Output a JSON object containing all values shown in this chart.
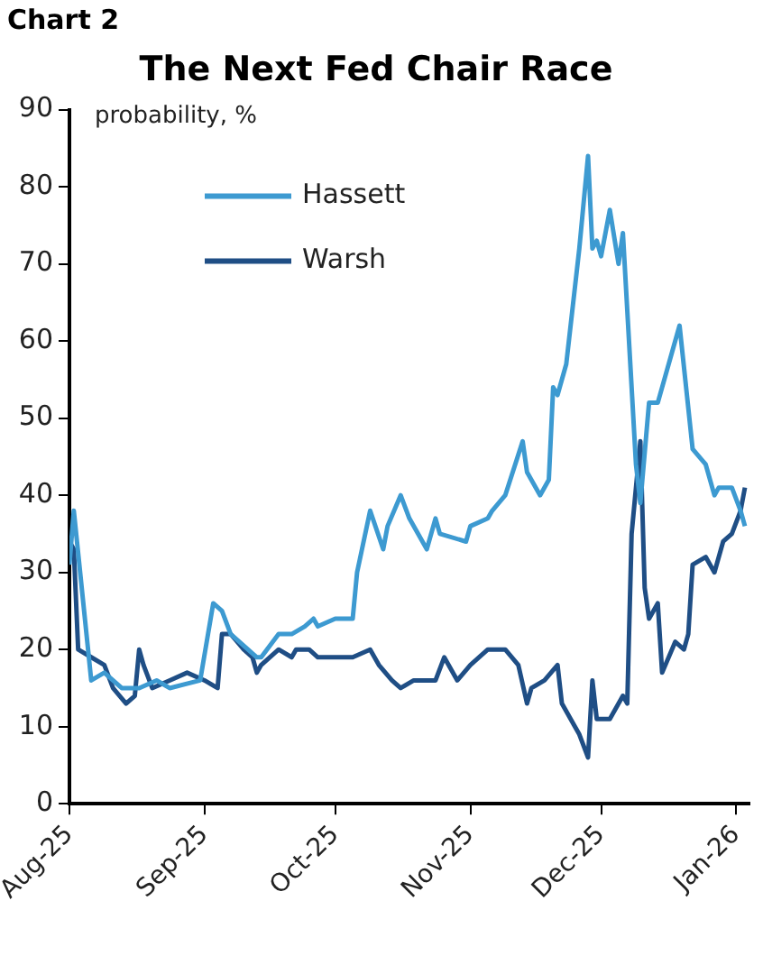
{
  "chart_data": {
    "type": "line",
    "title": "The Next Fed Chair Race",
    "ylabel": "probability, %",
    "annotations": [
      "Chart 2"
    ],
    "xlim": [
      "2025-08-01",
      "2026-01-04"
    ],
    "xticks": [
      {
        "value": "2025-08-01",
        "label": "Aug-25"
      },
      {
        "value": "2025-09-01",
        "label": "Sep-25"
      },
      {
        "value": "2025-10-01",
        "label": "Oct-25"
      },
      {
        "value": "2025-11-01",
        "label": "Nov-25"
      },
      {
        "value": "2025-12-01",
        "label": "Dec-25"
      },
      {
        "value": "2026-01-01",
        "label": "Jan-26"
      }
    ],
    "ylim": [
      0,
      90
    ],
    "yticks": [
      0,
      10,
      20,
      30,
      40,
      50,
      60,
      70,
      80,
      90
    ],
    "grid": false,
    "legend": "top left",
    "line_style": "solid",
    "marker": "none",
    "series": [
      {
        "name": "Hassett",
        "color": "#3d9ad1",
        "x": [
          "2025-08-01",
          "2025-08-02",
          "2025-08-04",
          "2025-08-06",
          "2025-08-09",
          "2025-08-13",
          "2025-08-17",
          "2025-08-21",
          "2025-08-24",
          "2025-08-31",
          "2025-09-03",
          "2025-09-05",
          "2025-09-07",
          "2025-09-13",
          "2025-09-14",
          "2025-09-18",
          "2025-09-21",
          "2025-09-24",
          "2025-09-26",
          "2025-09-27",
          "2025-10-01",
          "2025-10-05",
          "2025-10-06",
          "2025-10-09",
          "2025-10-12",
          "2025-10-13",
          "2025-10-16",
          "2025-10-18",
          "2025-10-22",
          "2025-10-24",
          "2025-10-25",
          "2025-10-31",
          "2025-11-01",
          "2025-11-05",
          "2025-11-06",
          "2025-11-09",
          "2025-11-13",
          "2025-11-14",
          "2025-11-17",
          "2025-11-19",
          "2025-11-20",
          "2025-11-21",
          "2025-11-23",
          "2025-11-26",
          "2025-11-28",
          "2025-11-29",
          "2025-11-30",
          "2025-12-01",
          "2025-12-03",
          "2025-12-05",
          "2025-12-06",
          "2025-12-09",
          "2025-12-10",
          "2025-12-12",
          "2025-12-14",
          "2025-12-19",
          "2025-12-22",
          "2025-12-25",
          "2025-12-27",
          "2025-12-28",
          "2025-12-31",
          "2026-01-02",
          "2026-01-03"
        ],
        "values": [
          31,
          38,
          27,
          16,
          17,
          15,
          15,
          16,
          15,
          16,
          26,
          25,
          22,
          19,
          19,
          22,
          22,
          23,
          24,
          23,
          24,
          24,
          30,
          38,
          33,
          36,
          40,
          37,
          33,
          37,
          35,
          34,
          36,
          37,
          38,
          40,
          47,
          43,
          40,
          42,
          54,
          53,
          57,
          72,
          84,
          72,
          73,
          71,
          77,
          70,
          74,
          44,
          39,
          52,
          52,
          62,
          46,
          44,
          40,
          41,
          41,
          38,
          36
        ]
      },
      {
        "name": "Warsh",
        "color": "#1f4e85",
        "x": [
          "2025-08-01",
          "2025-08-02",
          "2025-08-03",
          "2025-08-06",
          "2025-08-09",
          "2025-08-11",
          "2025-08-14",
          "2025-08-16",
          "2025-08-17",
          "2025-08-18",
          "2025-08-20",
          "2025-08-24",
          "2025-08-28",
          "2025-09-01",
          "2025-09-04",
          "2025-09-05",
          "2025-09-07",
          "2025-09-10",
          "2025-09-12",
          "2025-09-13",
          "2025-09-14",
          "2025-09-18",
          "2025-09-21",
          "2025-09-22",
          "2025-09-25",
          "2025-09-27",
          "2025-10-02",
          "2025-10-04",
          "2025-10-05",
          "2025-10-09",
          "2025-10-11",
          "2025-10-14",
          "2025-10-16",
          "2025-10-19",
          "2025-10-24",
          "2025-10-26",
          "2025-10-29",
          "2025-11-01",
          "2025-11-05",
          "2025-11-09",
          "2025-11-12",
          "2025-11-14",
          "2025-11-15",
          "2025-11-18",
          "2025-11-21",
          "2025-11-22",
          "2025-11-25",
          "2025-11-26",
          "2025-11-28",
          "2025-11-29",
          "2025-11-30",
          "2025-12-03",
          "2025-12-06",
          "2025-12-07",
          "2025-12-08",
          "2025-12-10",
          "2025-12-11",
          "2025-12-12",
          "2025-12-14",
          "2025-12-15",
          "2025-12-18",
          "2025-12-20",
          "2025-12-21",
          "2025-12-22",
          "2025-12-25",
          "2025-12-27",
          "2025-12-29",
          "2025-12-31",
          "2026-01-02",
          "2026-01-03"
        ],
        "values": [
          34,
          33,
          20,
          19,
          18,
          15,
          13,
          14,
          20,
          18,
          15,
          16,
          17,
          16,
          15,
          22,
          22,
          20,
          19,
          17,
          18,
          20,
          19,
          20,
          20,
          19,
          19,
          19,
          19,
          20,
          18,
          16,
          15,
          16,
          16,
          19,
          16,
          18,
          20,
          20,
          18,
          13,
          15,
          16,
          18,
          13,
          10,
          9,
          6,
          16,
          11,
          11,
          14,
          13,
          35,
          47,
          28,
          24,
          26,
          17,
          21,
          20,
          22,
          31,
          32,
          30,
          34,
          35,
          38,
          41
        ]
      }
    ]
  }
}
